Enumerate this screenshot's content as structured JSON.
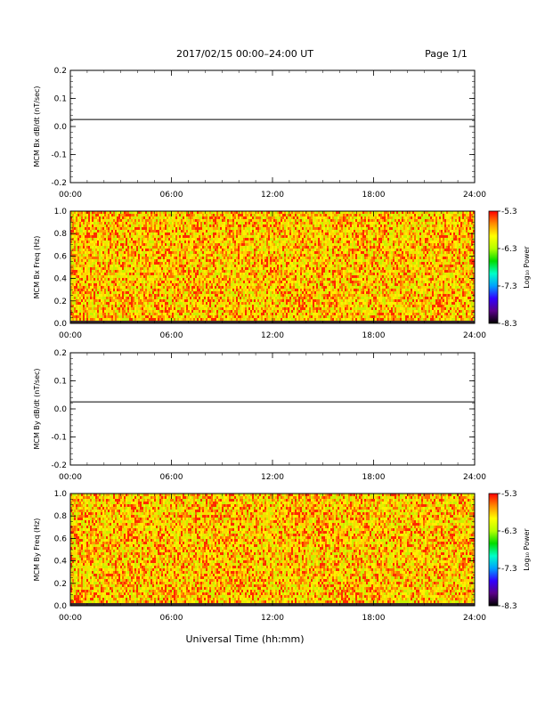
{
  "header": {
    "title": "2017/02/15  00:00–24:00 UT",
    "page": "Page 1/1"
  },
  "footer": {
    "xlabel": "Universal Time (hh:mm)"
  },
  "colorbar": {
    "label": "Log₁₀ Power",
    "ticks": [
      "-5.3",
      "-6.3",
      "-7.3",
      "-8.3"
    ],
    "tick_values": [
      -5.3,
      -6.3,
      -7.3,
      -8.3
    ],
    "range": [
      -8.3,
      -5.3
    ],
    "colors": [
      "#000000",
      "#5a0088",
      "#3200ff",
      "#00a0ff",
      "#00ffc8",
      "#00dc00",
      "#b4ff00",
      "#ffff00",
      "#ff8c00",
      "#ff0000"
    ]
  },
  "colors": {
    "speckle": [
      "#ffd700",
      "#ff6a00",
      "#c8f000",
      "#e8ec00",
      "#ffa000",
      "#ff2a00",
      "#fff000"
    ],
    "bottom_band": "#3a2a2a"
  },
  "chart_data": [
    {
      "type": "line",
      "ylabel": "MCM Bx dB/dt (nT/sec)",
      "x_ticks": [
        "00:00",
        "06:00",
        "12:00",
        "18:00",
        "24:00"
      ],
      "x_tick_values": [
        0,
        6,
        12,
        18,
        24
      ],
      "y_ticks": [
        "0.2",
        "0.1",
        "0.0",
        "-0.1",
        "-0.2"
      ],
      "y_tick_values": [
        0.2,
        0.1,
        0.0,
        -0.1,
        -0.2
      ],
      "xlim": [
        0,
        24
      ],
      "ylim": [
        -0.2,
        0.2
      ],
      "series": [
        {
          "x": [
            0,
            24
          ],
          "y": [
            0.025,
            0.025
          ]
        }
      ]
    },
    {
      "type": "heatmap",
      "ylabel": "MCM Bx Freq (Hz)",
      "x_ticks": [
        "00:00",
        "06:00",
        "12:00",
        "18:00",
        "24:00"
      ],
      "x_tick_values": [
        0,
        6,
        12,
        18,
        24
      ],
      "y_ticks": [
        "1.0",
        "0.8",
        "0.6",
        "0.4",
        "0.2",
        "0.0"
      ],
      "y_tick_values": [
        1.0,
        0.8,
        0.6,
        0.4,
        0.2,
        0.0
      ],
      "xlim": [
        0,
        24
      ],
      "ylim": [
        0,
        1.0
      ],
      "zlim": [
        -8.3,
        -5.3
      ]
    },
    {
      "type": "line",
      "ylabel": "MCM By dB/dt (nT/sec)",
      "x_ticks": [
        "00:00",
        "06:00",
        "12:00",
        "18:00",
        "24:00"
      ],
      "x_tick_values": [
        0,
        6,
        12,
        18,
        24
      ],
      "y_ticks": [
        "0.2",
        "0.1",
        "0.0",
        "-0.1",
        "-0.2"
      ],
      "y_tick_values": [
        0.2,
        0.1,
        0.0,
        -0.1,
        -0.2
      ],
      "xlim": [
        0,
        24
      ],
      "ylim": [
        -0.2,
        0.2
      ],
      "series": [
        {
          "x": [
            0,
            24
          ],
          "y": [
            0.025,
            0.025
          ]
        }
      ]
    },
    {
      "type": "heatmap",
      "ylabel": "MCM By Freq (Hz)",
      "x_ticks": [
        "00:00",
        "06:00",
        "12:00",
        "18:00",
        "24:00"
      ],
      "x_tick_values": [
        0,
        6,
        12,
        18,
        24
      ],
      "y_ticks": [
        "1.0",
        "0.8",
        "0.6",
        "0.4",
        "0.2",
        "0.0"
      ],
      "y_tick_values": [
        1.0,
        0.8,
        0.6,
        0.4,
        0.2,
        0.0
      ],
      "xlim": [
        0,
        24
      ],
      "ylim": [
        0,
        1.0
      ],
      "zlim": [
        -8.3,
        -5.3
      ]
    }
  ]
}
